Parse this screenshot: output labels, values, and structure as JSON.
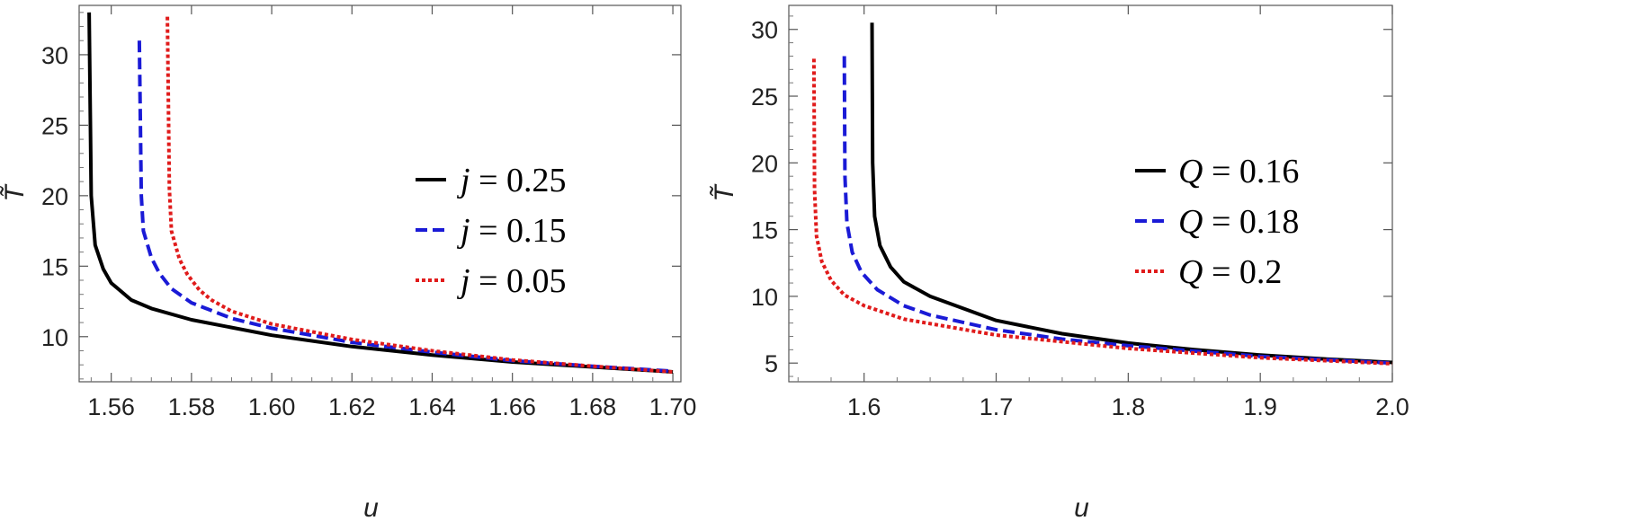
{
  "chart_data": [
    {
      "type": "line",
      "xlabel": "u",
      "ylabel": "T̃",
      "xlim": [
        1.552,
        1.702
      ],
      "ylim": [
        6.8,
        33.5
      ],
      "xticks": [
        1.56,
        1.58,
        1.6,
        1.62,
        1.64,
        1.66,
        1.68,
        1.7
      ],
      "xtick_labels": [
        "1.56",
        "1.58",
        "1.60",
        "1.62",
        "1.64",
        "1.66",
        "1.68",
        "1.70"
      ],
      "yticks": [
        10,
        15,
        20,
        25,
        30
      ],
      "ytick_labels": [
        "10",
        "15",
        "20",
        "25",
        "30"
      ],
      "legend_position": "center-right",
      "series": [
        {
          "name": "j = 0.25",
          "legend": {
            "var": "j",
            "value": "0.25"
          },
          "color": "#000000",
          "style": "solid",
          "x": [
            1.5545,
            1.555,
            1.556,
            1.558,
            1.56,
            1.565,
            1.57,
            1.58,
            1.6,
            1.62,
            1.64,
            1.66,
            1.68,
            1.7
          ],
          "y": [
            33.0,
            20.0,
            16.5,
            14.8,
            13.8,
            12.6,
            12.0,
            11.2,
            10.1,
            9.3,
            8.7,
            8.2,
            7.85,
            7.5
          ]
        },
        {
          "name": "j = 0.15",
          "legend": {
            "var": "j",
            "value": "0.15"
          },
          "color": "#1a1ad6",
          "style": "dashed",
          "x": [
            1.567,
            1.5675,
            1.568,
            1.57,
            1.572,
            1.575,
            1.58,
            1.59,
            1.6,
            1.62,
            1.64,
            1.66,
            1.68,
            1.7
          ],
          "y": [
            31.0,
            20.0,
            17.5,
            15.6,
            14.5,
            13.4,
            12.4,
            11.3,
            10.6,
            9.6,
            8.9,
            8.3,
            7.9,
            7.55
          ]
        },
        {
          "name": "j = 0.05",
          "legend": {
            "var": "j",
            "value": "0.05"
          },
          "color": "#e01b1b",
          "style": "dotted",
          "x": [
            1.574,
            1.5745,
            1.575,
            1.577,
            1.579,
            1.582,
            1.585,
            1.59,
            1.6,
            1.62,
            1.64,
            1.66,
            1.68,
            1.7
          ],
          "y": [
            32.7,
            20.5,
            17.5,
            15.5,
            14.4,
            13.3,
            12.6,
            11.8,
            10.9,
            9.8,
            9.0,
            8.35,
            7.9,
            7.5
          ]
        }
      ]
    },
    {
      "type": "line",
      "xlabel": "u",
      "ylabel": "T̃",
      "xlim": [
        1.543,
        2.0
      ],
      "ylim": [
        3.6,
        31.8
      ],
      "xticks": [
        1.6,
        1.7,
        1.8,
        1.9,
        2.0
      ],
      "xtick_labels": [
        "1.6",
        "1.7",
        "1.8",
        "1.9",
        "2.0"
      ],
      "yticks": [
        5,
        10,
        15,
        20,
        25,
        30
      ],
      "ytick_labels": [
        "5",
        "10",
        "15",
        "20",
        "25",
        "30"
      ],
      "legend_position": "center-right",
      "series": [
        {
          "name": "Q = 0.16",
          "legend": {
            "var": "Q",
            "value": "0.16"
          },
          "color": "#000000",
          "style": "solid",
          "x": [
            1.606,
            1.6065,
            1.608,
            1.612,
            1.62,
            1.63,
            1.65,
            1.7,
            1.75,
            1.8,
            1.85,
            1.9,
            1.95,
            2.0
          ],
          "y": [
            30.5,
            20.0,
            16.0,
            13.8,
            12.2,
            11.1,
            10.0,
            8.2,
            7.2,
            6.5,
            6.0,
            5.6,
            5.3,
            5.05
          ]
        },
        {
          "name": "Q = 0.18",
          "legend": {
            "var": "Q",
            "value": "0.18"
          },
          "color": "#1a1ad6",
          "style": "dashed",
          "x": [
            1.585,
            1.5855,
            1.587,
            1.591,
            1.598,
            1.61,
            1.63,
            1.65,
            1.7,
            1.75,
            1.8,
            1.9,
            2.0
          ],
          "y": [
            28.0,
            19.0,
            15.5,
            13.3,
            11.8,
            10.5,
            9.3,
            8.6,
            7.5,
            6.8,
            6.3,
            5.5,
            5.0
          ]
        },
        {
          "name": "Q = 0.2",
          "legend": {
            "var": "Q",
            "value": "0.2"
          },
          "color": "#e01b1b",
          "style": "dotted",
          "x": [
            1.562,
            1.5625,
            1.564,
            1.568,
            1.575,
            1.585,
            1.6,
            1.63,
            1.7,
            1.75,
            1.8,
            1.9,
            2.0
          ],
          "y": [
            27.8,
            18.0,
            14.5,
            12.6,
            11.2,
            10.1,
            9.3,
            8.3,
            7.1,
            6.6,
            6.1,
            5.4,
            4.95
          ]
        }
      ]
    }
  ]
}
